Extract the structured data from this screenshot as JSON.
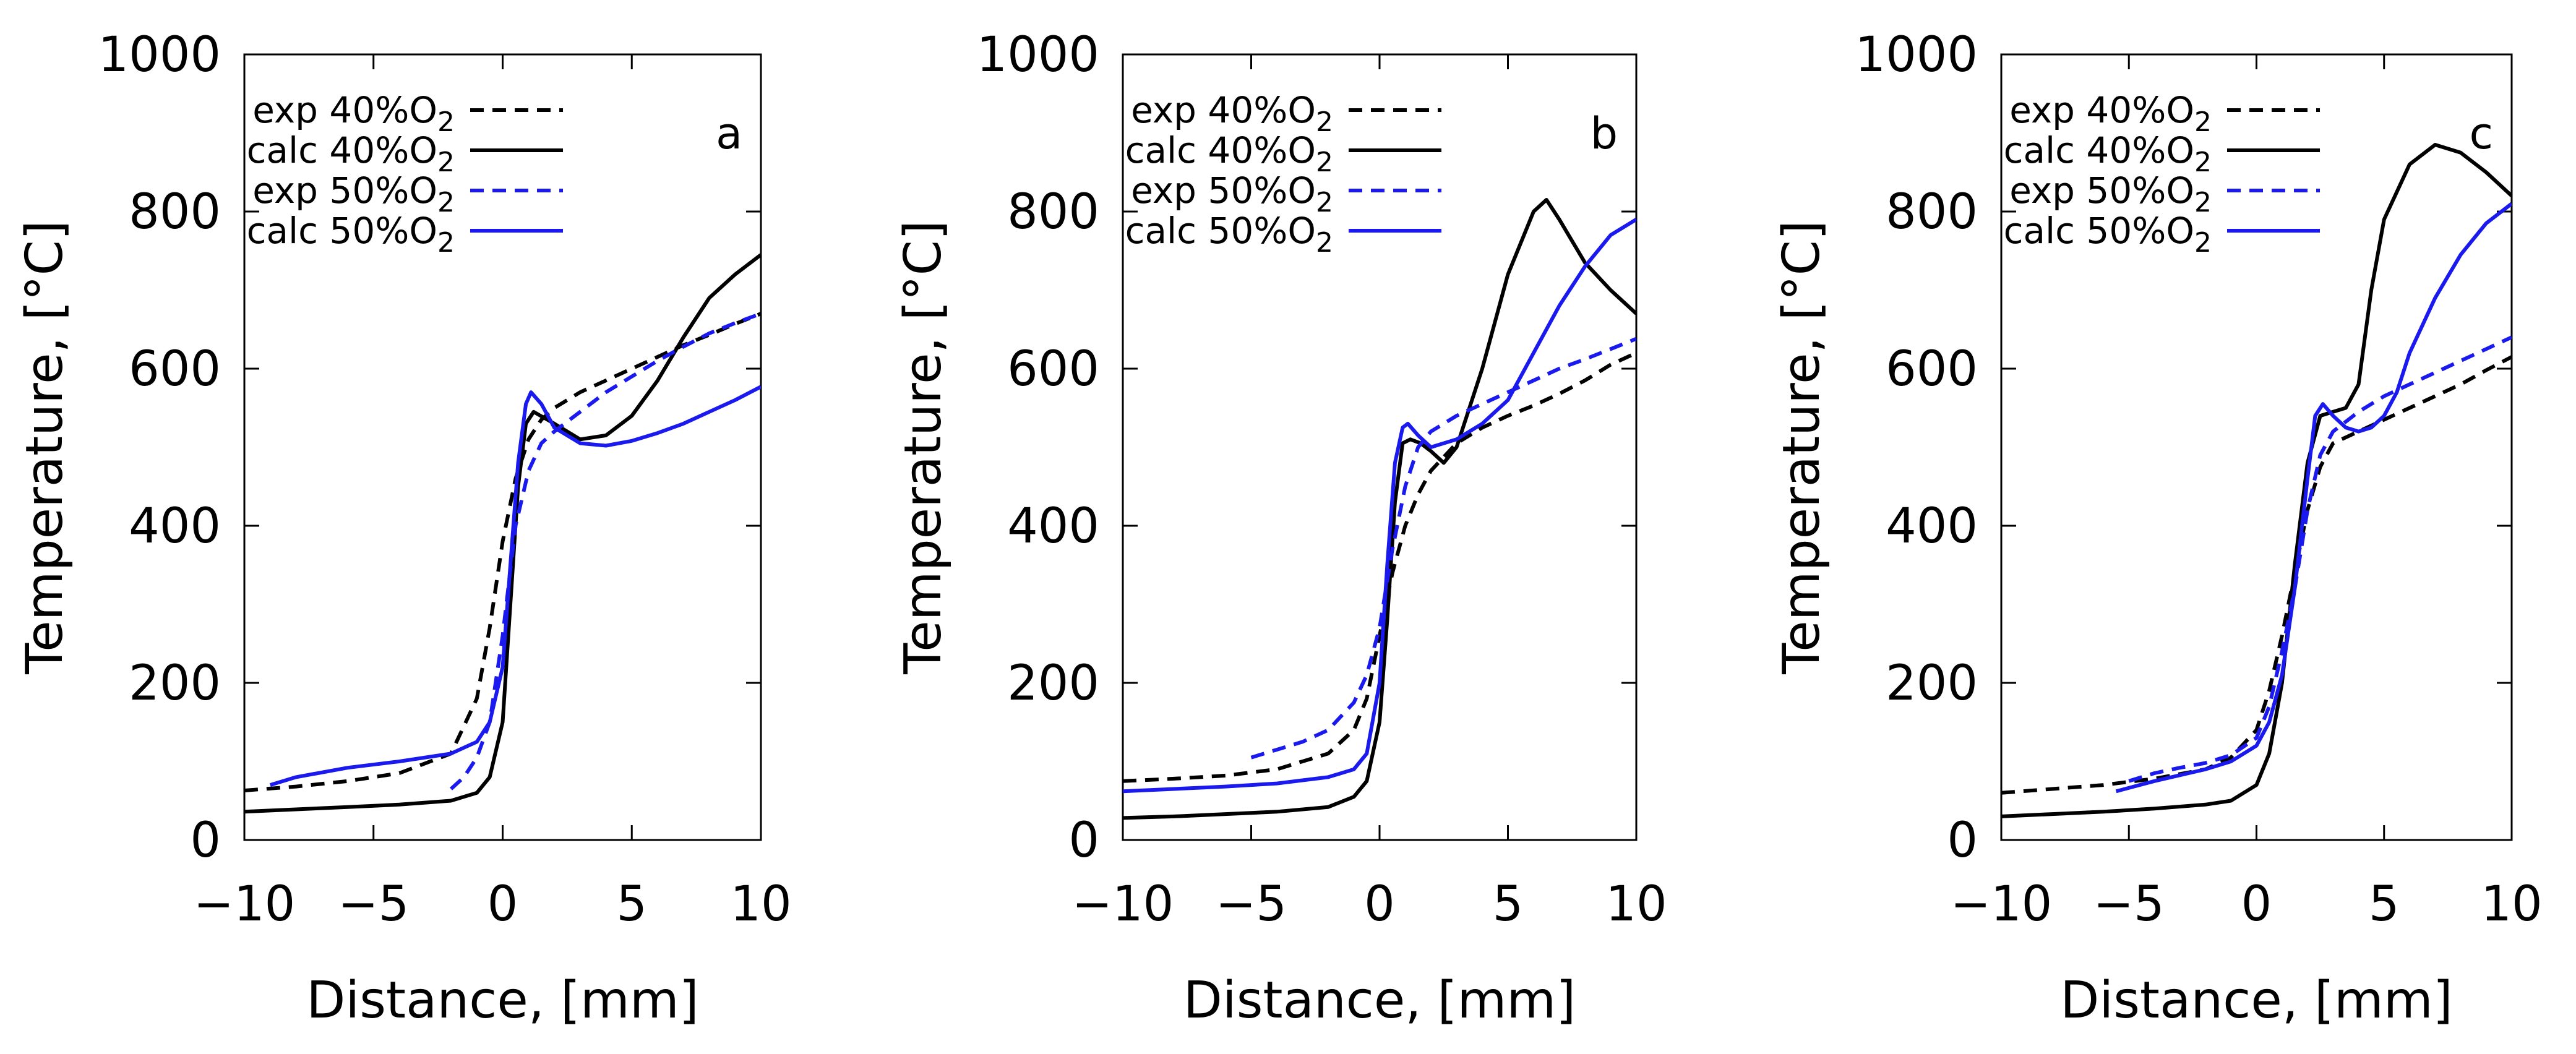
{
  "chart_data": [
    {
      "type": "line",
      "panel_label": "a",
      "xlabel": "Distance, [mm]",
      "ylabel": "Temperature, [°C]",
      "xlim": [
        -10,
        10
      ],
      "ylim": [
        0,
        1000
      ],
      "xticks": [
        -10,
        -5,
        0,
        5,
        10
      ],
      "yticks": [
        0,
        200,
        400,
        600,
        800,
        1000
      ],
      "xtick_labels": [
        "−10",
        "−5",
        "0",
        "5",
        "10"
      ],
      "ytick_labels": [
        "0",
        "200",
        "400",
        "600",
        "800",
        "1000"
      ],
      "legend_position": "top-left",
      "series": [
        {
          "name": "exp 40%O",
          "subscript": "2",
          "color": "#000000",
          "style": "dashed",
          "x": [
            -10,
            -8,
            -6,
            -4,
            -2,
            -1,
            -0.5,
            0,
            0.5,
            1,
            1.5,
            2,
            3,
            4,
            5,
            6,
            7,
            8,
            9,
            10
          ],
          "y": [
            63,
            68,
            75,
            85,
            110,
            180,
            270,
            380,
            460,
            510,
            535,
            550,
            570,
            585,
            600,
            615,
            630,
            643,
            657,
            670
          ]
        },
        {
          "name": "calc 40%O",
          "subscript": "2",
          "color": "#000000",
          "style": "solid",
          "x": [
            -10,
            -8,
            -6,
            -4,
            -2,
            -1,
            -0.5,
            0,
            0.3,
            0.6,
            0.9,
            1.2,
            2,
            3,
            4,
            5,
            6,
            7,
            8,
            9,
            10
          ],
          "y": [
            36,
            39,
            42,
            45,
            50,
            60,
            80,
            150,
            300,
            450,
            530,
            545,
            530,
            510,
            515,
            540,
            585,
            640,
            690,
            720,
            745
          ]
        },
        {
          "name": "exp 50%O",
          "subscript": "2",
          "color": "#1a1aee",
          "style": "dashed",
          "x": [
            -2,
            -1.5,
            -1,
            -0.5,
            0,
            0.5,
            1,
            1.5,
            2,
            3,
            4,
            5,
            6,
            7,
            8,
            9,
            10
          ],
          "y": [
            65,
            80,
            105,
            150,
            260,
            400,
            470,
            505,
            520,
            545,
            570,
            590,
            610,
            628,
            645,
            658,
            670
          ]
        },
        {
          "name": "calc 50%O",
          "subscript": "2",
          "color": "#1a1aee",
          "style": "solid",
          "x": [
            -9,
            -8,
            -6,
            -4,
            -2,
            -1,
            -0.5,
            0,
            0.3,
            0.6,
            0.9,
            1.1,
            1.5,
            2,
            3,
            4,
            5,
            6,
            7,
            8,
            9,
            10
          ],
          "y": [
            70,
            80,
            92,
            100,
            110,
            125,
            150,
            220,
            350,
            480,
            555,
            570,
            555,
            525,
            505,
            502,
            508,
            518,
            530,
            545,
            560,
            577
          ]
        }
      ]
    },
    {
      "type": "line",
      "panel_label": "b",
      "xlabel": "Distance, [mm]",
      "ylabel": "Temperature, [°C]",
      "xlim": [
        -10,
        10
      ],
      "ylim": [
        0,
        1000
      ],
      "xticks": [
        -10,
        -5,
        0,
        5,
        10
      ],
      "yticks": [
        0,
        200,
        400,
        600,
        800,
        1000
      ],
      "xtick_labels": [
        "−10",
        "−5",
        "0",
        "5",
        "10"
      ],
      "ytick_labels": [
        "0",
        "200",
        "400",
        "600",
        "800",
        "1000"
      ],
      "legend_position": "top-left",
      "series": [
        {
          "name": "exp 40%O",
          "subscript": "2",
          "color": "#000000",
          "style": "dashed",
          "x": [
            -10,
            -8,
            -6,
            -4,
            -2,
            -1,
            -0.5,
            0,
            0.5,
            1,
            1.5,
            2,
            3,
            4,
            5,
            6,
            7,
            8,
            9,
            10
          ],
          "y": [
            75,
            78,
            82,
            90,
            110,
            140,
            180,
            260,
            340,
            400,
            440,
            470,
            505,
            525,
            540,
            553,
            568,
            585,
            605,
            620
          ]
        },
        {
          "name": "calc 40%O",
          "subscript": "2",
          "color": "#000000",
          "style": "solid",
          "x": [
            -10,
            -8,
            -6,
            -4,
            -2,
            -1,
            -0.5,
            0,
            0.3,
            0.6,
            0.9,
            1.2,
            1.6,
            2,
            2.5,
            3,
            4,
            5,
            6,
            6.5,
            7,
            8,
            9,
            10
          ],
          "y": [
            28,
            30,
            33,
            36,
            42,
            55,
            75,
            150,
            280,
            430,
            505,
            510,
            505,
            495,
            480,
            500,
            600,
            720,
            800,
            815,
            790,
            735,
            700,
            670
          ]
        },
        {
          "name": "exp 50%O",
          "subscript": "2",
          "color": "#1a1aee",
          "style": "dashed",
          "x": [
            -5,
            -4,
            -3,
            -2,
            -1,
            -0.5,
            0,
            0.5,
            1,
            1.5,
            2,
            3,
            4,
            5,
            6,
            7,
            8,
            9,
            10
          ],
          "y": [
            105,
            115,
            125,
            140,
            175,
            210,
            270,
            370,
            450,
            500,
            520,
            540,
            555,
            570,
            585,
            600,
            612,
            625,
            638
          ]
        },
        {
          "name": "calc 50%O",
          "subscript": "2",
          "color": "#1a1aee",
          "style": "solid",
          "x": [
            -10,
            -8,
            -6,
            -4,
            -2,
            -1,
            -0.5,
            0,
            0.3,
            0.6,
            0.9,
            1.1,
            1.5,
            2,
            3,
            4,
            5,
            6,
            7,
            8,
            9,
            10
          ],
          "y": [
            62,
            65,
            68,
            72,
            80,
            90,
            110,
            200,
            350,
            480,
            525,
            530,
            515,
            500,
            510,
            530,
            560,
            620,
            680,
            730,
            770,
            790
          ]
        }
      ]
    },
    {
      "type": "line",
      "panel_label": "c",
      "xlabel": "Distance, [mm]",
      "ylabel": "Temperature, [°C]",
      "xlim": [
        -10,
        10
      ],
      "ylim": [
        0,
        1000
      ],
      "xticks": [
        -10,
        -5,
        0,
        5,
        10
      ],
      "yticks": [
        0,
        200,
        400,
        600,
        800,
        1000
      ],
      "xtick_labels": [
        "−10",
        "−5",
        "0",
        "5",
        "10"
      ],
      "ytick_labels": [
        "0",
        "200",
        "400",
        "600",
        "800",
        "1000"
      ],
      "legend_position": "top-left",
      "series": [
        {
          "name": "exp 40%O",
          "subscript": "2",
          "color": "#000000",
          "style": "dashed",
          "x": [
            -10,
            -8,
            -6,
            -4,
            -2,
            -1,
            0,
            0.5,
            1,
            1.5,
            2,
            2.5,
            3,
            4,
            5,
            6,
            7,
            8,
            9,
            10
          ],
          "y": [
            60,
            65,
            70,
            78,
            90,
            105,
            140,
            190,
            260,
            340,
            420,
            475,
            505,
            520,
            535,
            550,
            565,
            580,
            598,
            615
          ]
        },
        {
          "name": "calc 40%O",
          "subscript": "2",
          "color": "#000000",
          "style": "solid",
          "x": [
            -10,
            -8,
            -6,
            -4,
            -2,
            -1,
            0,
            0.5,
            1,
            1.5,
            2,
            2.5,
            3,
            3.5,
            4,
            4.5,
            5,
            6,
            7,
            8,
            9,
            10
          ],
          "y": [
            30,
            33,
            36,
            40,
            45,
            50,
            70,
            110,
            200,
            350,
            480,
            540,
            545,
            550,
            580,
            700,
            790,
            860,
            885,
            875,
            850,
            820
          ]
        },
        {
          "name": "exp 50%O",
          "subscript": "2",
          "color": "#1a1aee",
          "style": "dashed",
          "x": [
            -5,
            -4,
            -3,
            -2,
            -1,
            0,
            0.5,
            1,
            1.5,
            2,
            2.5,
            3,
            4,
            5,
            6,
            7,
            8,
            9,
            10
          ],
          "y": [
            75,
            85,
            92,
            98,
            108,
            130,
            170,
            240,
            320,
            420,
            490,
            520,
            545,
            565,
            580,
            595,
            610,
            625,
            640
          ]
        },
        {
          "name": "calc 50%O",
          "subscript": "2",
          "color": "#1a1aee",
          "style": "solid",
          "x": [
            -5.5,
            -4,
            -2,
            -1,
            0,
            0.5,
            1,
            1.5,
            2,
            2.3,
            2.6,
            3,
            3.5,
            4,
            4.5,
            5,
            5.5,
            6,
            7,
            8,
            9,
            10
          ],
          "y": [
            62,
            75,
            90,
            100,
            120,
            150,
            210,
            320,
            460,
            540,
            555,
            540,
            525,
            520,
            525,
            540,
            570,
            620,
            690,
            745,
            785,
            810
          ]
        }
      ]
    }
  ]
}
